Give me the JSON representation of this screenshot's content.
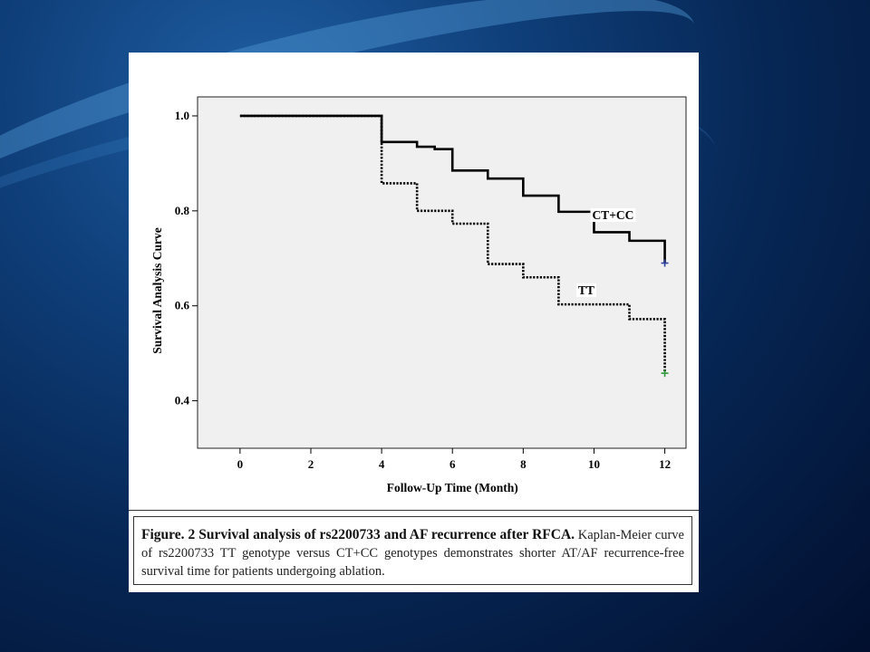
{
  "chart_data": {
    "type": "line",
    "ylabel": "Survival Analysis Curve",
    "xlabel": "Follow-Up Time (Month)",
    "xlim": [
      -1.2,
      12.6
    ],
    "ylim": [
      0.3,
      1.04
    ],
    "x_ticks": [
      "0",
      "2",
      "4",
      "6",
      "8",
      "10",
      "12"
    ],
    "y_ticks": [
      "1.0",
      "0.8",
      "0.6",
      "0.4"
    ],
    "grid": false,
    "series": [
      {
        "name": "CT+CC",
        "style": "solid",
        "color": "#000000",
        "censor_color": "#2a3fa0",
        "x": [
          0,
          4,
          5,
          5.5,
          6,
          7,
          8,
          9,
          10,
          11,
          12
        ],
        "y": [
          1.0,
          0.945,
          0.935,
          0.93,
          0.885,
          0.868,
          0.832,
          0.798,
          0.755,
          0.737,
          0.69
        ]
      },
      {
        "name": "TT",
        "style": "dotted",
        "color": "#000000",
        "censor_color": "#2e9a3a",
        "x": [
          0,
          4,
          5,
          6,
          7,
          8,
          9,
          11,
          12
        ],
        "y": [
          1.0,
          0.858,
          0.8,
          0.773,
          0.688,
          0.66,
          0.603,
          0.572,
          0.458
        ]
      }
    ]
  },
  "caption": {
    "title": "Figure. 2 Survival analysis of rs2200733 and AF recurrence after RFCA.",
    "text": "Kaplan-Meier curve of rs2200733 TT genotype versus CT+CC genotypes demonstrates shorter AT/AF recurrence-free survival time for patients undergoing ablation."
  }
}
